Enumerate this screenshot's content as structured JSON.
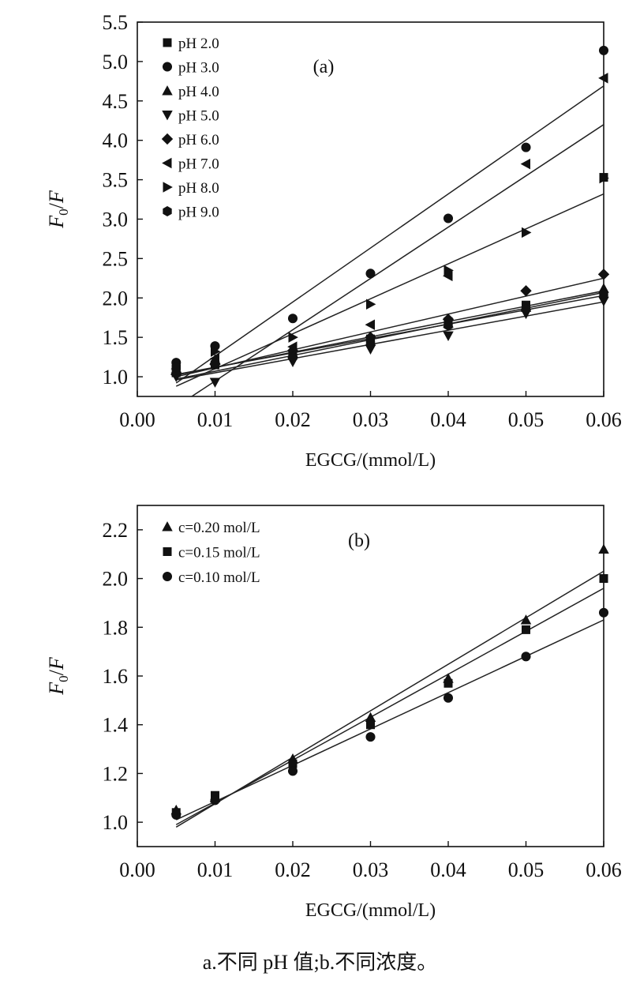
{
  "caption": "a.不同 pH 值;b.不同浓度。",
  "chart_data": [
    {
      "type": "scatter",
      "panel_label": "(a)",
      "xlabel": "EGCG/(mmol/L)",
      "ylabel_main": "F",
      "ylabel_sub": "0",
      "ylabel_tail": "/F",
      "xlim": [
        0.0,
        0.06
      ],
      "ylim": [
        0.75,
        5.5
      ],
      "xticks": [
        "0.00",
        "0.01",
        "0.02",
        "0.03",
        "0.04",
        "0.05",
        "0.06"
      ],
      "xtick_values": [
        0.0,
        0.01,
        0.02,
        0.03,
        0.04,
        0.05,
        0.06
      ],
      "yticks": [
        "1.0",
        "1.5",
        "2.0",
        "2.5",
        "3.0",
        "3.5",
        "4.0",
        "4.5",
        "5.0",
        "5.5"
      ],
      "ytick_values": [
        1.0,
        1.5,
        2.0,
        2.5,
        3.0,
        3.5,
        4.0,
        4.5,
        5.0,
        5.5
      ],
      "legend_position": "top-left",
      "grid": false,
      "series": [
        {
          "name": "pH 2.0",
          "marker": "square",
          "x": [
            0.005,
            0.01,
            0.02,
            0.03,
            0.04,
            0.05,
            0.06
          ],
          "y": [
            1.05,
            1.15,
            1.28,
            1.48,
            1.7,
            1.91,
            3.53
          ],
          "fit": [
            [
              0.005,
              0.97
            ],
            [
              0.06,
              2.07
            ]
          ]
        },
        {
          "name": "pH 3.0",
          "marker": "circle",
          "x": [
            0.005,
            0.01,
            0.02,
            0.03,
            0.04,
            0.05,
            0.06
          ],
          "y": [
            1.18,
            1.39,
            1.74,
            2.31,
            3.01,
            3.91,
            5.14
          ],
          "fit": [
            [
              0.005,
              0.92
            ],
            [
              0.06,
              4.69
            ]
          ]
        },
        {
          "name": "pH 4.0",
          "marker": "triangle-up",
          "x": [
            0.005,
            0.01,
            0.02,
            0.03,
            0.04,
            0.05,
            0.06
          ],
          "y": [
            1.08,
            1.22,
            1.3,
            1.45,
            1.68,
            1.88,
            2.12
          ],
          "fit": [
            [
              0.005,
              1.02
            ],
            [
              0.06,
              2.09
            ]
          ]
        },
        {
          "name": "pH 5.0",
          "marker": "triangle-down",
          "x": [
            0.005,
            0.01,
            0.02,
            0.03,
            0.04,
            0.05,
            0.06
          ],
          "y": [
            1.0,
            0.93,
            1.19,
            1.35,
            1.52,
            1.8,
            1.96
          ],
          "fit": [
            [
              0.005,
              0.96
            ],
            [
              0.06,
              1.95
            ]
          ]
        },
        {
          "name": "pH 6.0",
          "marker": "diamond",
          "x": [
            0.005,
            0.01,
            0.02,
            0.03,
            0.04,
            0.05,
            0.06
          ],
          "y": [
            1.03,
            1.16,
            1.33,
            1.5,
            1.73,
            2.09,
            2.3
          ],
          "fit": [
            [
              0.005,
              1.0
            ],
            [
              0.06,
              2.25
            ]
          ]
        },
        {
          "name": "pH 7.0",
          "marker": "triangle-left",
          "x": [
            0.005,
            0.01,
            0.02,
            0.03,
            0.04,
            0.05,
            0.06
          ],
          "y": [
            1.1,
            1.23,
            1.38,
            1.66,
            2.28,
            3.7,
            4.79
          ],
          "fit": [
            [
              0.007,
              0.75
            ],
            [
              0.06,
              4.2
            ]
          ]
        },
        {
          "name": "pH 8.0",
          "marker": "triangle-right",
          "x": [
            0.005,
            0.01,
            0.02,
            0.03,
            0.04,
            0.05,
            0.06
          ],
          "y": [
            1.06,
            1.32,
            1.5,
            1.92,
            2.35,
            2.83,
            3.52
          ],
          "fit": [
            [
              0.005,
              0.88
            ],
            [
              0.06,
              3.32
            ]
          ]
        },
        {
          "name": "pH 9.0",
          "marker": "hexagon",
          "x": [
            0.005,
            0.01,
            0.02,
            0.03,
            0.04,
            0.05,
            0.06
          ],
          "y": [
            1.12,
            1.17,
            1.25,
            1.43,
            1.65,
            1.86,
            2.05
          ],
          "fit": [
            [
              0.005,
              1.03
            ],
            [
              0.06,
              2.03
            ]
          ]
        }
      ]
    },
    {
      "type": "scatter",
      "panel_label": "(b)",
      "xlabel": "EGCG/(mmol/L)",
      "ylabel_main": "F",
      "ylabel_sub": "0",
      "ylabel_tail": "/F",
      "xlim": [
        0.0,
        0.06
      ],
      "ylim": [
        0.9,
        2.3
      ],
      "xticks": [
        "0.00",
        "0.01",
        "0.02",
        "0.03",
        "0.04",
        "0.05",
        "0.06"
      ],
      "xtick_values": [
        0.0,
        0.01,
        0.02,
        0.03,
        0.04,
        0.05,
        0.06
      ],
      "yticks": [
        "1.0",
        "1.2",
        "1.4",
        "1.6",
        "1.8",
        "2.0",
        "2.2"
      ],
      "ytick_values": [
        1.0,
        1.2,
        1.4,
        1.6,
        1.8,
        2.0,
        2.2
      ],
      "legend_position": "top-left",
      "grid": false,
      "series": [
        {
          "name": "c=0.20 mol/L",
          "marker": "triangle-up",
          "x": [
            0.005,
            0.01,
            0.02,
            0.03,
            0.04,
            0.05,
            0.06
          ],
          "y": [
            1.05,
            1.1,
            1.26,
            1.43,
            1.59,
            1.83,
            2.12
          ],
          "fit": [
            [
              0.005,
              0.98
            ],
            [
              0.06,
              2.03
            ]
          ]
        },
        {
          "name": "c=0.15 mol/L",
          "marker": "square",
          "x": [
            0.005,
            0.01,
            0.02,
            0.03,
            0.04,
            0.05,
            0.06
          ],
          "y": [
            1.04,
            1.11,
            1.24,
            1.4,
            1.57,
            1.79,
            2.0
          ],
          "fit": [
            [
              0.005,
              0.99
            ],
            [
              0.06,
              1.96
            ]
          ]
        },
        {
          "name": "c=0.10 mol/L",
          "marker": "circle",
          "x": [
            0.005,
            0.01,
            0.02,
            0.03,
            0.04,
            0.05,
            0.06
          ],
          "y": [
            1.03,
            1.09,
            1.21,
            1.35,
            1.51,
            1.68,
            1.86
          ],
          "fit": [
            [
              0.005,
              1.01
            ],
            [
              0.06,
              1.83
            ]
          ]
        }
      ]
    }
  ]
}
